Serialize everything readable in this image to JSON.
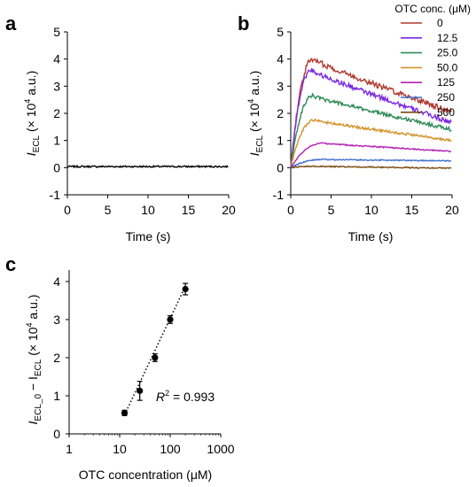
{
  "figure": {
    "panel_labels": [
      "a",
      "b",
      "c"
    ]
  },
  "chart_data": [
    {
      "panel": "a",
      "type": "line",
      "xlabel": "Time (s)",
      "ylabel_main": "I",
      "ylabel_sub": "ECL",
      "ylabel_rest": " (× 10",
      "ylabel_sup": "4",
      "ylabel_end": " a.u.)",
      "xlim": [
        0,
        20
      ],
      "ylim": [
        -1,
        5
      ],
      "xticks": [
        0,
        5,
        10,
        15,
        20
      ],
      "yticks": [
        -1,
        0,
        1,
        2,
        3,
        4,
        5
      ],
      "series": [
        {
          "color": "#000000",
          "baseline": 0.04,
          "noise": 0.03
        }
      ]
    },
    {
      "panel": "b",
      "type": "line",
      "xlabel": "Time (s)",
      "ylabel_main": "I",
      "ylabel_sub": "ECL",
      "ylabel_rest": " (× 10",
      "ylabel_sup": "4",
      "ylabel_end": " a.u.)",
      "xlim": [
        0,
        20
      ],
      "ylim": [
        -1,
        5
      ],
      "xticks": [
        0,
        5,
        10,
        15,
        20
      ],
      "yticks": [
        -1,
        0,
        1,
        2,
        3,
        4,
        5
      ],
      "legend_title": "OTC conc. (μM)",
      "legend_position": "top-right",
      "series": [
        {
          "name": "0",
          "color": "#b03a2e",
          "peak": 4.0,
          "peak_time": 2.8,
          "end": 2.05
        },
        {
          "name": "12.5",
          "color": "#7b2be2",
          "peak": 3.6,
          "peak_time": 2.6,
          "end": 1.65
        },
        {
          "name": "25.0",
          "color": "#2e8b57",
          "peak": 2.65,
          "peak_time": 2.8,
          "end": 1.4
        },
        {
          "name": "50.0",
          "color": "#d4932c",
          "peak": 1.75,
          "peak_time": 3.0,
          "end": 1.0
        },
        {
          "name": "125",
          "color": "#b51fb5",
          "peak": 0.9,
          "peak_time": 4.0,
          "end": 0.6
        },
        {
          "name": "250",
          "color": "#3f6fd1",
          "peak": 0.3,
          "peak_time": 4.0,
          "end": 0.25
        },
        {
          "name": "500",
          "color": "#7a4a12",
          "peak": 0.05,
          "peak_time": 3.0,
          "end": -0.02
        }
      ]
    },
    {
      "panel": "c",
      "type": "scatter",
      "xlabel": "OTC concentration (μM)",
      "ylabel_main": "I",
      "ylabel_sub": "ECL_0",
      "ylabel_mid": " − I",
      "ylabel_sub2": "ECL",
      "ylabel_rest": " (× 10",
      "ylabel_sup": "4",
      "ylabel_end": " a.u.)",
      "xscale": "log",
      "xlim": [
        1,
        1000
      ],
      "ylim": [
        0,
        4.3
      ],
      "xticks": [
        1,
        10,
        100,
        1000
      ],
      "yticks": [
        0,
        1,
        2,
        3,
        4
      ],
      "annotation": "R² = 0.993",
      "annotation_main": "R",
      "annotation_sup": "2",
      "annotation_rest": " = 0.993",
      "points": [
        {
          "x": 12.5,
          "y": 0.55,
          "err": 0.07
        },
        {
          "x": 25.0,
          "y": 1.13,
          "err": 0.25
        },
        {
          "x": 50.0,
          "y": 2.0,
          "err": 0.1
        },
        {
          "x": 100,
          "y": 3.0,
          "err": 0.1
        },
        {
          "x": 200,
          "y": 3.8,
          "err": 0.15
        }
      ],
      "fit": {
        "x_start": 12.5,
        "x_end": 200,
        "y_start": 0.5,
        "y_end": 3.88,
        "style": "dotted"
      }
    }
  ]
}
